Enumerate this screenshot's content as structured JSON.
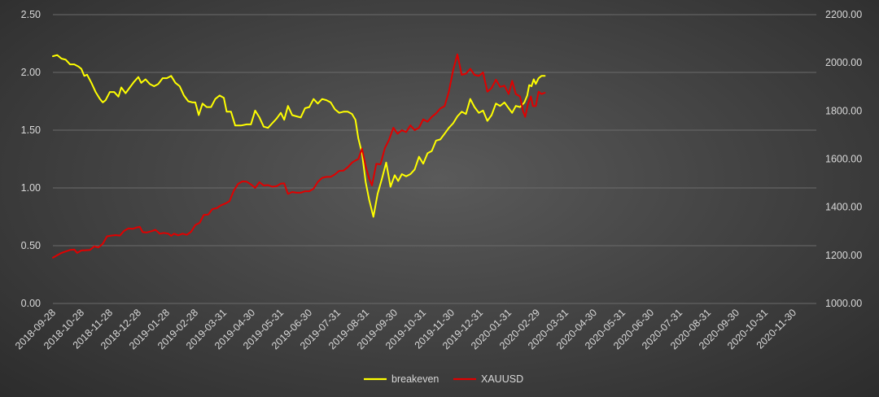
{
  "chart_data": {
    "type": "line",
    "title": "",
    "grid": true,
    "legend_position": "bottom",
    "x_labels": [
      "2018-09-28",
      "2018-10-28",
      "2018-11-28",
      "2018-12-28",
      "2019-01-28",
      "2019-02-28",
      "2019-03-31",
      "2019-04-30",
      "2019-05-31",
      "2019-06-30",
      "2019-07-31",
      "2019-08-31",
      "2019-09-30",
      "2019-10-31",
      "2019-11-30",
      "2019-12-31",
      "2020-01-31",
      "2020-02-29",
      "2020-03-31",
      "2020-04-30",
      "2020-05-31",
      "2020-06-30",
      "2020-07-31",
      "2020-08-31",
      "2020-09-30",
      "2020-10-31",
      "2020-11-30"
    ],
    "y_left": {
      "ticks": [
        "0.00",
        "0.50",
        "1.00",
        "1.50",
        "2.00",
        "2.50"
      ],
      "min": 0,
      "max": 2.5
    },
    "y_right": {
      "ticks": [
        "1000.00",
        "1200.00",
        "1400.00",
        "1600.00",
        "1800.00",
        "2000.00",
        "2200.00"
      ],
      "min": 1000,
      "max": 2200
    },
    "series": [
      {
        "name": "breakeven",
        "axis": "left",
        "color": "#ffff00",
        "points": [
          [
            0,
            2.14
          ],
          [
            0.15,
            2.15
          ],
          [
            0.3,
            2.12
          ],
          [
            0.45,
            2.11
          ],
          [
            0.6,
            2.07
          ],
          [
            0.75,
            2.07
          ],
          [
            0.9,
            2.05
          ],
          [
            1.0,
            2.03
          ],
          [
            1.1,
            1.97
          ],
          [
            1.2,
            1.98
          ],
          [
            1.35,
            1.91
          ],
          [
            1.5,
            1.83
          ],
          [
            1.65,
            1.77
          ],
          [
            1.75,
            1.74
          ],
          [
            1.85,
            1.76
          ],
          [
            2.0,
            1.83
          ],
          [
            2.15,
            1.83
          ],
          [
            2.3,
            1.79
          ],
          [
            2.4,
            1.87
          ],
          [
            2.55,
            1.82
          ],
          [
            2.7,
            1.87
          ],
          [
            2.85,
            1.92
          ],
          [
            3.0,
            1.96
          ],
          [
            3.1,
            1.91
          ],
          [
            3.25,
            1.94
          ],
          [
            3.4,
            1.9
          ],
          [
            3.55,
            1.88
          ],
          [
            3.7,
            1.9
          ],
          [
            3.85,
            1.95
          ],
          [
            4.0,
            1.95
          ],
          [
            4.15,
            1.97
          ],
          [
            4.3,
            1.91
          ],
          [
            4.45,
            1.88
          ],
          [
            4.6,
            1.8
          ],
          [
            4.75,
            1.75
          ],
          [
            4.9,
            1.74
          ],
          [
            5.0,
            1.74
          ],
          [
            5.12,
            1.63
          ],
          [
            5.25,
            1.73
          ],
          [
            5.4,
            1.7
          ],
          [
            5.55,
            1.7
          ],
          [
            5.7,
            1.77
          ],
          [
            5.85,
            1.8
          ],
          [
            6.0,
            1.78
          ],
          [
            6.1,
            1.66
          ],
          [
            6.25,
            1.66
          ],
          [
            6.4,
            1.54
          ],
          [
            6.6,
            1.54
          ],
          [
            6.8,
            1.55
          ],
          [
            6.95,
            1.55
          ],
          [
            7.1,
            1.67
          ],
          [
            7.25,
            1.61
          ],
          [
            7.4,
            1.53
          ],
          [
            7.55,
            1.52
          ],
          [
            7.7,
            1.56
          ],
          [
            7.85,
            1.6
          ],
          [
            8.0,
            1.65
          ],
          [
            8.12,
            1.59
          ],
          [
            8.25,
            1.71
          ],
          [
            8.4,
            1.63
          ],
          [
            8.55,
            1.62
          ],
          [
            8.7,
            1.61
          ],
          [
            8.85,
            1.69
          ],
          [
            9.0,
            1.7
          ],
          [
            9.15,
            1.77
          ],
          [
            9.3,
            1.73
          ],
          [
            9.45,
            1.77
          ],
          [
            9.6,
            1.76
          ],
          [
            9.75,
            1.74
          ],
          [
            9.9,
            1.68
          ],
          [
            10.05,
            1.65
          ],
          [
            10.2,
            1.66
          ],
          [
            10.35,
            1.66
          ],
          [
            10.5,
            1.64
          ],
          [
            10.62,
            1.59
          ],
          [
            10.72,
            1.43
          ],
          [
            10.85,
            1.3
          ],
          [
            10.98,
            1.05
          ],
          [
            11.1,
            0.9
          ],
          [
            11.25,
            0.75
          ],
          [
            11.4,
            0.95
          ],
          [
            11.55,
            1.08
          ],
          [
            11.7,
            1.22
          ],
          [
            11.85,
            1.01
          ],
          [
            12.0,
            1.11
          ],
          [
            12.12,
            1.06
          ],
          [
            12.25,
            1.12
          ],
          [
            12.4,
            1.1
          ],
          [
            12.55,
            1.12
          ],
          [
            12.7,
            1.16
          ],
          [
            12.85,
            1.27
          ],
          [
            13.0,
            1.21
          ],
          [
            13.15,
            1.3
          ],
          [
            13.3,
            1.32
          ],
          [
            13.45,
            1.41
          ],
          [
            13.6,
            1.42
          ],
          [
            13.75,
            1.47
          ],
          [
            13.9,
            1.52
          ],
          [
            14.05,
            1.56
          ],
          [
            14.2,
            1.62
          ],
          [
            14.35,
            1.66
          ],
          [
            14.5,
            1.64
          ],
          [
            14.65,
            1.77
          ],
          [
            14.8,
            1.7
          ],
          [
            14.95,
            1.65
          ],
          [
            15.1,
            1.67
          ],
          [
            15.25,
            1.58
          ],
          [
            15.4,
            1.63
          ],
          [
            15.55,
            1.73
          ],
          [
            15.7,
            1.71
          ],
          [
            15.85,
            1.74
          ],
          [
            16.0,
            1.69
          ],
          [
            16.12,
            1.65
          ],
          [
            16.25,
            1.71
          ],
          [
            16.4,
            1.7
          ],
          [
            16.55,
            1.74
          ],
          [
            16.65,
            1.8
          ],
          [
            16.72,
            1.89
          ],
          [
            16.8,
            1.88
          ],
          [
            16.88,
            1.94
          ],
          [
            16.95,
            1.9
          ],
          [
            17.05,
            1.95
          ],
          [
            17.15,
            1.97
          ],
          [
            17.27,
            1.97
          ]
        ]
      },
      {
        "name": "XAUUSD",
        "axis": "right",
        "color": "#e00000",
        "points": [
          [
            0,
            1190
          ],
          [
            0.15,
            1200
          ],
          [
            0.3,
            1210
          ],
          [
            0.45,
            1216
          ],
          [
            0.6,
            1222
          ],
          [
            0.75,
            1224
          ],
          [
            0.85,
            1210
          ],
          [
            1.0,
            1220
          ],
          [
            1.15,
            1221
          ],
          [
            1.3,
            1222
          ],
          [
            1.45,
            1237
          ],
          [
            1.6,
            1233
          ],
          [
            1.75,
            1248
          ],
          [
            1.9,
            1279
          ],
          [
            2.05,
            1282
          ],
          [
            2.2,
            1284
          ],
          [
            2.35,
            1282
          ],
          [
            2.5,
            1302
          ],
          [
            2.65,
            1312
          ],
          [
            2.8,
            1310
          ],
          [
            2.95,
            1316
          ],
          [
            3.05,
            1318
          ],
          [
            3.15,
            1296
          ],
          [
            3.3,
            1295
          ],
          [
            3.45,
            1300
          ],
          [
            3.6,
            1306
          ],
          [
            3.75,
            1290
          ],
          [
            3.9,
            1293
          ],
          [
            4.05,
            1290
          ],
          [
            4.15,
            1281
          ],
          [
            4.25,
            1290
          ],
          [
            4.4,
            1283
          ],
          [
            4.55,
            1290
          ],
          [
            4.7,
            1285
          ],
          [
            4.85,
            1298
          ],
          [
            5.0,
            1326
          ],
          [
            5.15,
            1335
          ],
          [
            5.3,
            1368
          ],
          [
            5.45,
            1369
          ],
          [
            5.6,
            1392
          ],
          [
            5.75,
            1396
          ],
          [
            5.9,
            1408
          ],
          [
            6.05,
            1415
          ],
          [
            6.2,
            1425
          ],
          [
            6.35,
            1469
          ],
          [
            6.5,
            1497
          ],
          [
            6.65,
            1507
          ],
          [
            6.8,
            1506
          ],
          [
            6.95,
            1495
          ],
          [
            7.1,
            1480
          ],
          [
            7.25,
            1504
          ],
          [
            7.4,
            1490
          ],
          [
            7.55,
            1492
          ],
          [
            7.7,
            1485
          ],
          [
            7.85,
            1487
          ],
          [
            8.0,
            1498
          ],
          [
            8.12,
            1499
          ],
          [
            8.25,
            1455
          ],
          [
            8.4,
            1463
          ],
          [
            8.55,
            1460
          ],
          [
            8.7,
            1460
          ],
          [
            8.85,
            1466
          ],
          [
            9.0,
            1466
          ],
          [
            9.15,
            1477
          ],
          [
            9.3,
            1505
          ],
          [
            9.45,
            1522
          ],
          [
            9.6,
            1526
          ],
          [
            9.75,
            1526
          ],
          [
            9.9,
            1536
          ],
          [
            10.05,
            1551
          ],
          [
            10.2,
            1552
          ],
          [
            10.35,
            1566
          ],
          [
            10.5,
            1585
          ],
          [
            10.62,
            1594
          ],
          [
            10.72,
            1600
          ],
          [
            10.85,
            1643
          ],
          [
            10.98,
            1570
          ],
          [
            11.1,
            1520
          ],
          [
            11.2,
            1490
          ],
          [
            11.35,
            1580
          ],
          [
            11.5,
            1578
          ],
          [
            11.65,
            1645
          ],
          [
            11.8,
            1680
          ],
          [
            11.95,
            1730
          ],
          [
            12.1,
            1705
          ],
          [
            12.25,
            1720
          ],
          [
            12.4,
            1712
          ],
          [
            12.55,
            1740
          ],
          [
            12.7,
            1720
          ],
          [
            12.85,
            1730
          ],
          [
            13.0,
            1765
          ],
          [
            13.15,
            1755
          ],
          [
            13.3,
            1775
          ],
          [
            13.45,
            1790
          ],
          [
            13.6,
            1810
          ],
          [
            13.75,
            1820
          ],
          [
            13.9,
            1880
          ],
          [
            14.05,
            1970
          ],
          [
            14.2,
            2035
          ],
          [
            14.35,
            1950
          ],
          [
            14.5,
            1955
          ],
          [
            14.65,
            1975
          ],
          [
            14.8,
            1950
          ],
          [
            14.95,
            1945
          ],
          [
            15.1,
            1960
          ],
          [
            15.25,
            1880
          ],
          [
            15.4,
            1895
          ],
          [
            15.55,
            1930
          ],
          [
            15.7,
            1900
          ],
          [
            15.85,
            1905
          ],
          [
            16.0,
            1870
          ],
          [
            16.12,
            1925
          ],
          [
            16.25,
            1870
          ],
          [
            16.4,
            1860
          ],
          [
            16.5,
            1800
          ],
          [
            16.58,
            1775
          ],
          [
            16.68,
            1830
          ],
          [
            16.78,
            1860
          ],
          [
            16.85,
            1820
          ],
          [
            16.95,
            1820
          ],
          [
            17.05,
            1880
          ],
          [
            17.15,
            1870
          ],
          [
            17.27,
            1875
          ]
        ]
      }
    ]
  }
}
